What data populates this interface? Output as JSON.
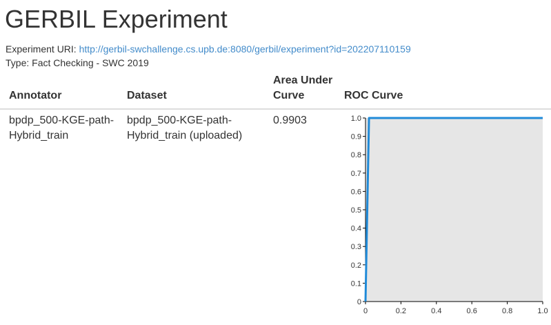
{
  "page": {
    "title": "GERBIL Experiment",
    "experiment_uri_label": "Experiment URI:",
    "experiment_uri": "http://gerbil-swchallenge.cs.upb.de:8080/gerbil/experiment?id=202207110159",
    "type_label": "Type:",
    "type_value": "Fact Checking - SWC 2019"
  },
  "table": {
    "headers": {
      "annotator": "Annotator",
      "dataset": "Dataset",
      "auc_line1": "Area Under",
      "auc_line2": "Curve",
      "roc": "ROC Curve"
    },
    "rows": [
      {
        "annotator_line1": "bpdp_500-KGE-path-",
        "annotator_line2": "Hybrid_train",
        "dataset_line1": "bpdp_500-KGE-path-",
        "dataset_line2": "Hybrid_train (uploaded)",
        "auc": "0.9903"
      }
    ]
  },
  "colors": {
    "link": "#428bca",
    "curve": "#1f8ad8",
    "plot_bg": "#e6e6e6"
  },
  "chart_data": {
    "type": "line",
    "title": "",
    "xlabel": "",
    "ylabel": "",
    "xlim": [
      0,
      1
    ],
    "ylim": [
      0,
      1
    ],
    "x_ticks": [
      "0",
      "0.2",
      "0.4",
      "0.6",
      "0.8",
      "1.0"
    ],
    "y_ticks": [
      "0",
      "0.1",
      "0.2",
      "0.3",
      "0.4",
      "0.5",
      "0.6",
      "0.7",
      "0.8",
      "0.9",
      "1.0"
    ],
    "series": [
      {
        "x": [
          0,
          0.02,
          1.0
        ],
        "y": [
          0,
          1.0,
          1.0
        ]
      }
    ]
  }
}
